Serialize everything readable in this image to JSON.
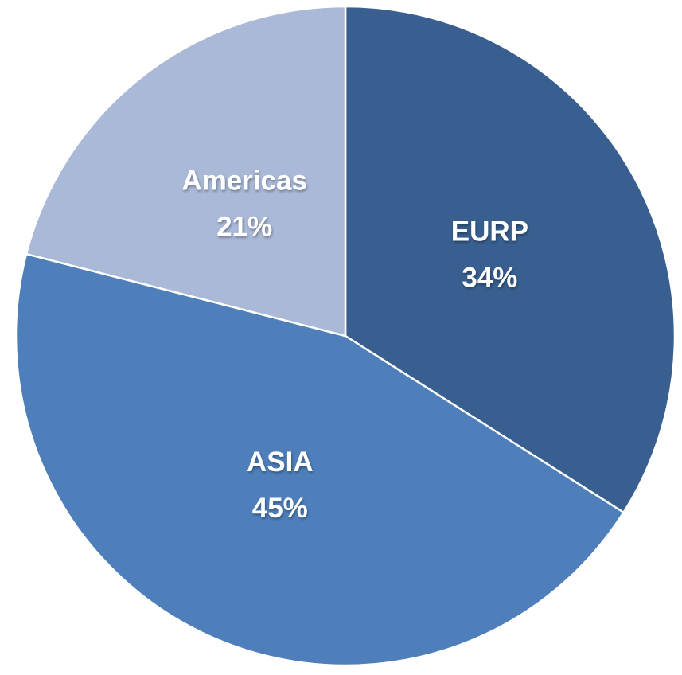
{
  "chart_data": {
    "type": "pie",
    "categories": [
      "EURP",
      "ASIA",
      "Americas"
    ],
    "values": [
      34,
      45,
      21
    ],
    "value_labels": [
      "34%",
      "45%",
      "21%"
    ],
    "colors": [
      "#385f8f",
      "#4e7fbb",
      "#a9b9d7"
    ]
  }
}
